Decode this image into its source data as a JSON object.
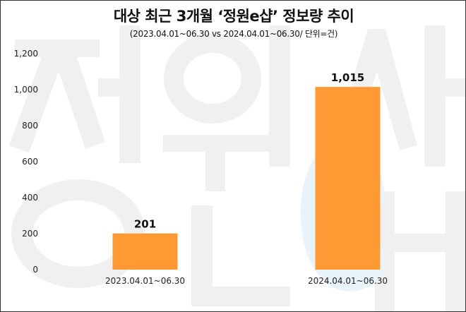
{
  "chart_data": {
    "type": "bar",
    "title": "대상 최근 3개월 ‘정원e샵’ 정보량 추이",
    "subtitle": "(2023.04.01~06.30 vs 2024.04.01~06.30/ 단위=건)",
    "categories": [
      "2023.04.01~06.30",
      "2024.04.01~06.30"
    ],
    "values": [
      201,
      1015
    ],
    "value_labels": [
      "201",
      "1,015"
    ],
    "yticks": [
      "0",
      "200",
      "400",
      "600",
      "800",
      "1,000",
      "1,200"
    ],
    "ylim": [
      0,
      1200
    ],
    "xlabel": "",
    "ylabel": "",
    "grid": false,
    "bar_color": "#FF9933"
  },
  "watermark": {
    "text": "정원e샵"
  }
}
